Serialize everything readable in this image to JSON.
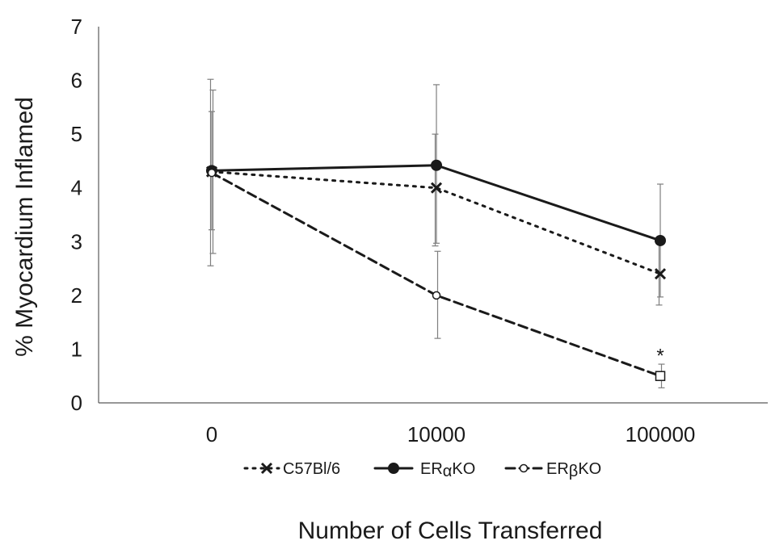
{
  "chart_data": {
    "type": "line",
    "xlabel": "Number of Cells Transferred",
    "ylabel": "% Myocardium Inflamed",
    "categories": [
      "0",
      "10000",
      "100000"
    ],
    "ylim": [
      0,
      7
    ],
    "yticks": [
      "0",
      "1",
      "2",
      "3",
      "4",
      "5",
      "6",
      "7"
    ],
    "grid": false,
    "legend_position": "bottom",
    "series": [
      {
        "name": "C57Bl/6",
        "values": [
          4.3,
          4.0,
          2.4
        ],
        "error": [
          [
            2.55,
            6.02
          ],
          [
            2.92,
            5.0
          ],
          [
            1.82,
            2.98
          ]
        ],
        "marker": "x",
        "line_style": "dotted"
      },
      {
        "name": "ERαKO",
        "legend_parts": [
          "ER",
          "α",
          "KO"
        ],
        "values": [
          4.32,
          4.42,
          3.02
        ],
        "error": [
          [
            3.22,
            5.42
          ],
          [
            2.97,
            5.92
          ],
          [
            1.97,
            4.07
          ]
        ],
        "marker": "filled-circle",
        "line_style": "solid"
      },
      {
        "name": "ERβKO",
        "legend_parts": [
          "ER",
          "β",
          "KO"
        ],
        "values": [
          4.28,
          2.0,
          0.5
        ],
        "error": [
          [
            2.78,
            5.82
          ],
          [
            1.2,
            2.82
          ],
          [
            0.28,
            0.72
          ]
        ],
        "marker": "open-circle",
        "line_style": "dashed"
      }
    ],
    "annotations": [
      {
        "text": "*",
        "category": "100000",
        "value": 0.97
      }
    ],
    "colors": {
      "line": "#1a1a1a",
      "axis": "#595959",
      "error_bar": "#7f7f7f"
    }
  }
}
